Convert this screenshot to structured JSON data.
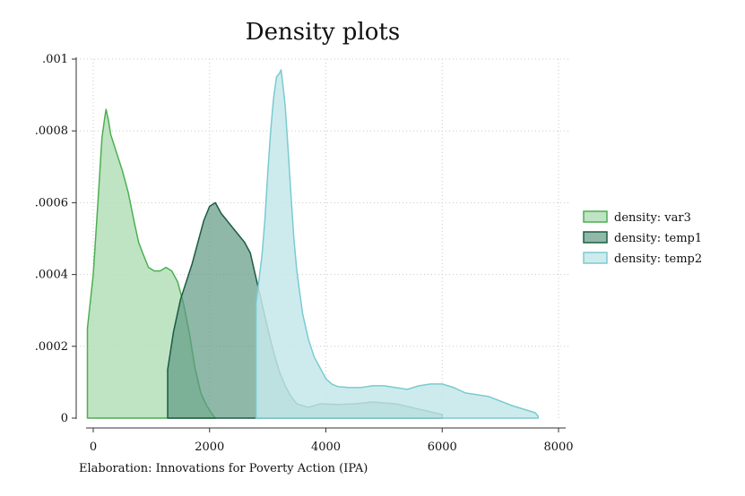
{
  "chart_data": {
    "type": "area",
    "title": "Density plots",
    "xlabel": "",
    "ylabel": "",
    "note": "Elaboration: Innovations for Poverty Action (IPA)",
    "xlim": [
      -300,
      8000
    ],
    "ylim": [
      0,
      0.001
    ],
    "x_ticks": [
      0,
      2000,
      4000,
      6000,
      8000
    ],
    "x_tick_labels": [
      "0",
      "2000",
      "4000",
      "6000",
      "8000"
    ],
    "y_ticks": [
      0,
      0.0002,
      0.0004,
      0.0006,
      0.0008,
      0.001
    ],
    "y_tick_labels": [
      "0",
      ".0002",
      ".0004",
      ".0006",
      ".0008",
      ".001"
    ],
    "grid": true,
    "legend_position": "right",
    "series": [
      {
        "name": "density: var3",
        "fill": "#b3dfb9",
        "stroke": "#4caf50",
        "points": [
          [
            -100,
            0
          ],
          [
            -100,
            0.00025
          ],
          [
            0,
            0.0004
          ],
          [
            80,
            0.0006
          ],
          [
            150,
            0.00078
          ],
          [
            200,
            0.00084
          ],
          [
            220,
            0.00086
          ],
          [
            260,
            0.00083
          ],
          [
            300,
            0.00079
          ],
          [
            400,
            0.00074
          ],
          [
            500,
            0.00069
          ],
          [
            600,
            0.00063
          ],
          [
            700,
            0.00055
          ],
          [
            780,
            0.00049
          ],
          [
            850,
            0.00046
          ],
          [
            950,
            0.00042
          ],
          [
            1050,
            0.00041
          ],
          [
            1150,
            0.00041
          ],
          [
            1250,
            0.00042
          ],
          [
            1350,
            0.00041
          ],
          [
            1450,
            0.00038
          ],
          [
            1550,
            0.00032
          ],
          [
            1650,
            0.00024
          ],
          [
            1750,
            0.00014
          ],
          [
            1850,
            7e-05
          ],
          [
            1950,
            3.5e-05
          ],
          [
            2050,
            1e-05
          ],
          [
            2100,
            0
          ]
        ]
      },
      {
        "name": "density: temp1",
        "fill": "#5f9a85",
        "stroke": "#1e5a44",
        "points": [
          [
            1280,
            0
          ],
          [
            1280,
            0.000135
          ],
          [
            1380,
            0.00024
          ],
          [
            1500,
            0.00033
          ],
          [
            1600,
            0.00038
          ],
          [
            1700,
            0.00043
          ],
          [
            1800,
            0.00049
          ],
          [
            1900,
            0.00055
          ],
          [
            2000,
            0.00059
          ],
          [
            2100,
            0.0006
          ],
          [
            2200,
            0.00057
          ],
          [
            2300,
            0.00055
          ],
          [
            2400,
            0.00053
          ],
          [
            2500,
            0.00051
          ],
          [
            2600,
            0.00049
          ],
          [
            2700,
            0.00046
          ],
          [
            2800,
            0.00039
          ],
          [
            2900,
            0.00032
          ],
          [
            3000,
            0.00025
          ],
          [
            3100,
            0.000185
          ],
          [
            3200,
            0.00013
          ],
          [
            3300,
            9e-05
          ],
          [
            3400,
            6e-05
          ],
          [
            3500,
            4e-05
          ],
          [
            3700,
            3e-05
          ],
          [
            3900,
            4e-05
          ],
          [
            4200,
            3.8e-05
          ],
          [
            4500,
            4e-05
          ],
          [
            4800,
            4.5e-05
          ],
          [
            5200,
            4e-05
          ],
          [
            5600,
            2.5e-05
          ],
          [
            6000,
            1e-05
          ],
          [
            6000,
            0
          ]
        ]
      },
      {
        "name": "density: temp2",
        "fill": "#c4e8ea",
        "stroke": "#7acbd0",
        "points": [
          [
            2800,
            0
          ],
          [
            2800,
            0.00032
          ],
          [
            2900,
            0.00045
          ],
          [
            2950,
            0.00055
          ],
          [
            3000,
            0.00068
          ],
          [
            3050,
            0.0008
          ],
          [
            3100,
            0.00089
          ],
          [
            3150,
            0.00095
          ],
          [
            3200,
            0.00096
          ],
          [
            3230,
            0.00097
          ],
          [
            3260,
            0.00093
          ],
          [
            3300,
            0.00087
          ],
          [
            3350,
            0.00075
          ],
          [
            3400,
            0.00062
          ],
          [
            3450,
            0.0005
          ],
          [
            3500,
            0.00041
          ],
          [
            3550,
            0.00035
          ],
          [
            3600,
            0.00029
          ],
          [
            3700,
            0.00022
          ],
          [
            3800,
            0.00017
          ],
          [
            3900,
            0.00014
          ],
          [
            4000,
            0.00011
          ],
          [
            4100,
            9.5e-05
          ],
          [
            4200,
            8.8e-05
          ],
          [
            4400,
            8.5e-05
          ],
          [
            4600,
            8.5e-05
          ],
          [
            4800,
            9e-05
          ],
          [
            5000,
            9e-05
          ],
          [
            5200,
            8.5e-05
          ],
          [
            5400,
            8e-05
          ],
          [
            5600,
            9e-05
          ],
          [
            5800,
            9.5e-05
          ],
          [
            6000,
            9.5e-05
          ],
          [
            6200,
            8.5e-05
          ],
          [
            6400,
            7e-05
          ],
          [
            6800,
            6e-05
          ],
          [
            7200,
            3.5e-05
          ],
          [
            7400,
            2.5e-05
          ],
          [
            7600,
            1.5e-05
          ],
          [
            7650,
            5e-06
          ],
          [
            7650,
            0
          ]
        ]
      }
    ]
  }
}
